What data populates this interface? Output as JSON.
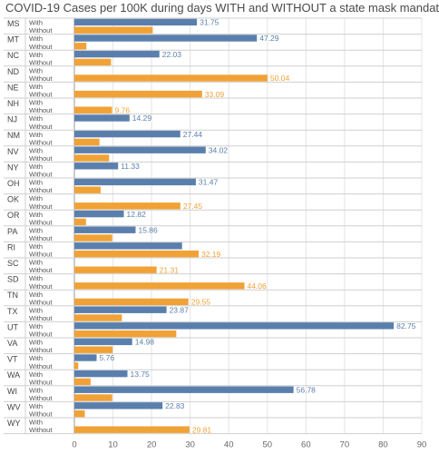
{
  "chart_data": {
    "type": "bar",
    "orientation": "horizontal",
    "title": "COVID-19 Cases per 100K during days WITH and WITHOUT a state mask mandate",
    "subcategories": [
      "With",
      "Without"
    ],
    "colors": {
      "With": "#5b7fad",
      "Without": "#f0a236"
    },
    "xlim": [
      0,
      90
    ],
    "xticks": [
      0,
      10,
      20,
      30,
      40,
      50,
      60,
      70,
      80,
      90
    ],
    "grid": true,
    "states": [
      {
        "state": "MS",
        "with": 31.75,
        "without": 20.3,
        "label_with": "31.75",
        "label_without": ""
      },
      {
        "state": "MT",
        "with": 47.29,
        "without": 3.1,
        "label_with": "47.29",
        "label_without": ""
      },
      {
        "state": "NC",
        "with": 22.03,
        "without": 9.5,
        "label_with": "22.03",
        "label_without": ""
      },
      {
        "state": "ND",
        "with": null,
        "without": 50.04,
        "label_with": "",
        "label_without": "50.04"
      },
      {
        "state": "NE",
        "with": null,
        "without": 33.09,
        "label_with": "",
        "label_without": "33.09"
      },
      {
        "state": "NH",
        "with": null,
        "without": 9.76,
        "label_with": "",
        "label_without": "9.76"
      },
      {
        "state": "NJ",
        "with": 14.29,
        "without": null,
        "label_with": "14.29",
        "label_without": ""
      },
      {
        "state": "NM",
        "with": 27.44,
        "without": 6.5,
        "label_with": "27.44",
        "label_without": ""
      },
      {
        "state": "NV",
        "with": 34.02,
        "without": 9.0,
        "label_with": "34.02",
        "label_without": ""
      },
      {
        "state": "NY",
        "with": 11.33,
        "without": null,
        "label_with": "11.33",
        "label_without": ""
      },
      {
        "state": "OH",
        "with": 31.47,
        "without": 6.8,
        "label_with": "31.47",
        "label_without": ""
      },
      {
        "state": "OK",
        "with": null,
        "without": 27.45,
        "label_with": "",
        "label_without": "27.45"
      },
      {
        "state": "OR",
        "with": 12.82,
        "without": 3.0,
        "label_with": "12.82",
        "label_without": ""
      },
      {
        "state": "PA",
        "with": 15.86,
        "without": 9.8,
        "label_with": "15.86",
        "label_without": ""
      },
      {
        "state": "RI",
        "with": 27.9,
        "without": 32.19,
        "label_with": "",
        "label_without": "32.19"
      },
      {
        "state": "SC",
        "with": null,
        "without": 21.31,
        "label_with": "",
        "label_without": "21.31"
      },
      {
        "state": "SD",
        "with": null,
        "without": 44.06,
        "label_with": "",
        "label_without": "44.06"
      },
      {
        "state": "TN",
        "with": null,
        "without": 29.55,
        "label_with": "",
        "label_without": "29.55"
      },
      {
        "state": "TX",
        "with": 23.87,
        "without": 12.3,
        "label_with": "23.87",
        "label_without": ""
      },
      {
        "state": "UT",
        "with": 82.75,
        "without": 26.4,
        "label_with": "82.75",
        "label_without": ""
      },
      {
        "state": "VA",
        "with": 14.98,
        "without": 9.9,
        "label_with": "14.98",
        "label_without": ""
      },
      {
        "state": "VT",
        "with": 5.76,
        "without": 1.0,
        "label_with": "5.76",
        "label_without": ""
      },
      {
        "state": "WA",
        "with": 13.75,
        "without": 4.2,
        "label_with": "13.75",
        "label_without": ""
      },
      {
        "state": "WI",
        "with": 56.78,
        "without": 9.8,
        "label_with": "56.78",
        "label_without": ""
      },
      {
        "state": "WV",
        "with": 22.83,
        "without": 2.7,
        "label_with": "22.83",
        "label_without": ""
      },
      {
        "state": "WY",
        "with": null,
        "without": 29.81,
        "label_with": "",
        "label_without": "29.81"
      }
    ]
  }
}
